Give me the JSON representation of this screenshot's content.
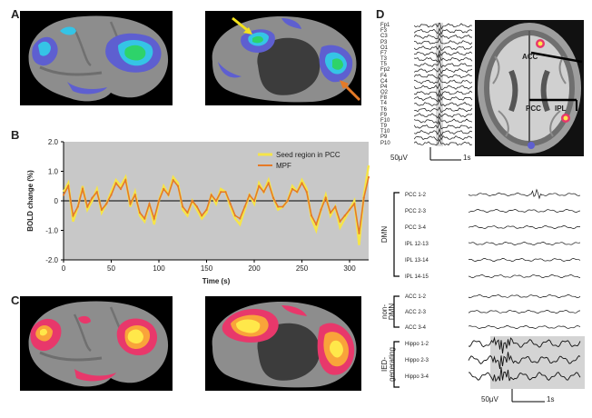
{
  "panels": {
    "a": {
      "label": "A"
    },
    "b": {
      "label": "B"
    },
    "c": {
      "label": "C"
    },
    "d": {
      "label": "D"
    }
  },
  "colors": {
    "dmn_blue": "#5e5fd0",
    "cyan": "#35c4e6",
    "green": "#2ed36a",
    "seed_yellow": "#f6e548",
    "mpf_orange": "#e57a27",
    "hot_red": "#e8386b",
    "hot_yellow": "#ffe84a",
    "arrow_yellow": "#f4e31c",
    "arrow_orange": "#e57a27"
  },
  "chart_data": {
    "type": "line",
    "title": "",
    "xlabel": "Time (s)",
    "ylabel": "BOLD change (%)",
    "xlim": [
      0,
      320
    ],
    "ylim": [
      -2.0,
      2.0
    ],
    "xticks": [
      0,
      50,
      100,
      150,
      200,
      250,
      300
    ],
    "yticks": [
      "2.0",
      "1.0",
      "0",
      "-1.0",
      "-2.0"
    ],
    "yticks_num": [
      2.0,
      1.0,
      0,
      -1.0,
      -2.0
    ],
    "legend": [
      "Seed region in PCC",
      "MPF"
    ],
    "legend_position": "top-right",
    "series": [
      {
        "name": "Seed region in PCC",
        "x": [
          0,
          5,
          10,
          15,
          20,
          25,
          30,
          35,
          40,
          45,
          50,
          55,
          60,
          65,
          70,
          75,
          80,
          85,
          90,
          95,
          100,
          105,
          110,
          115,
          120,
          125,
          130,
          135,
          140,
          145,
          150,
          155,
          160,
          165,
          170,
          175,
          180,
          185,
          190,
          195,
          200,
          205,
          210,
          215,
          220,
          225,
          230,
          235,
          240,
          245,
          250,
          255,
          260,
          265,
          270,
          275,
          280,
          285,
          290,
          295,
          300,
          305,
          310,
          315,
          320
        ],
        "values": [
          0.3,
          0.6,
          -0.7,
          -0.2,
          0.5,
          -0.3,
          0.0,
          0.4,
          -0.4,
          -0.1,
          0.3,
          0.7,
          0.5,
          0.8,
          -0.2,
          0.3,
          -0.5,
          -0.7,
          -0.1,
          -0.8,
          0.0,
          0.5,
          0.2,
          0.8,
          0.6,
          -0.3,
          -0.5,
          0.0,
          -0.3,
          -0.6,
          -0.4,
          0.2,
          -0.1,
          0.4,
          0.3,
          -0.2,
          -0.6,
          -0.8,
          -0.3,
          0.2,
          -0.1,
          0.6,
          0.3,
          0.7,
          0.1,
          -0.3,
          -0.2,
          0.0,
          0.5,
          0.3,
          0.7,
          0.4,
          -0.6,
          -1.0,
          -0.3,
          0.2,
          -0.5,
          -0.2,
          -0.9,
          -0.6,
          -0.3,
          0.0,
          -1.5,
          0.2,
          1.2
        ]
      },
      {
        "name": "MPF",
        "x": [
          0,
          5,
          10,
          15,
          20,
          25,
          30,
          35,
          40,
          45,
          50,
          55,
          60,
          65,
          70,
          75,
          80,
          85,
          90,
          95,
          100,
          105,
          110,
          115,
          120,
          125,
          130,
          135,
          140,
          145,
          150,
          155,
          160,
          165,
          170,
          175,
          180,
          185,
          190,
          195,
          200,
          205,
          210,
          215,
          220,
          225,
          230,
          235,
          240,
          245,
          250,
          255,
          260,
          265,
          270,
          275,
          280,
          285,
          290,
          295,
          300,
          305,
          310,
          315,
          320
        ],
        "values": [
          0.2,
          0.5,
          -0.5,
          -0.2,
          0.4,
          -0.2,
          0.1,
          0.3,
          -0.3,
          -0.1,
          0.2,
          0.6,
          0.4,
          0.7,
          -0.1,
          0.2,
          -0.4,
          -0.6,
          -0.1,
          -0.6,
          0.0,
          0.4,
          0.2,
          0.7,
          0.5,
          -0.2,
          -0.4,
          0.0,
          -0.2,
          -0.5,
          -0.3,
          0.2,
          0.0,
          0.3,
          0.3,
          -0.1,
          -0.5,
          -0.6,
          -0.2,
          0.2,
          0.0,
          0.5,
          0.3,
          0.6,
          0.1,
          -0.2,
          -0.2,
          0.0,
          0.4,
          0.3,
          0.6,
          0.3,
          -0.5,
          -0.8,
          -0.3,
          0.1,
          -0.4,
          -0.2,
          -0.7,
          -0.5,
          -0.3,
          -0.1,
          -1.1,
          0.1,
          0.8
        ]
      }
    ]
  },
  "eeg": {
    "scalp_channels": [
      "Fp1",
      "F3",
      "C3",
      "P3",
      "O1",
      "F7",
      "T3",
      "T5",
      "Fp2",
      "F4",
      "C4",
      "P4",
      "O2",
      "F8",
      "T4",
      "T6",
      "F9",
      "F10",
      "T9",
      "T10",
      "P9",
      "P10"
    ],
    "scale_voltage": "50μV",
    "scale_time": "1s",
    "regions": [
      "ACC",
      "PCC",
      "IPL"
    ]
  },
  "ieeg": {
    "groups": [
      {
        "label": "DMN",
        "channels": [
          "PCC 1-2",
          "PCC 2-3",
          "PCC 3-4",
          "IPL 12-13",
          "IPL 13-14",
          "IPL 14-15"
        ]
      },
      {
        "label": "non-\nDMN",
        "label_lines": [
          "non-",
          "DMN"
        ],
        "channels": [
          "ACC 1-2",
          "ACC 2-3",
          "ACC 3-4"
        ]
      },
      {
        "label": "IED-generating",
        "label_lines": [
          "IED-",
          "generating"
        ],
        "channels": [
          "Hippo 1-2",
          "Hippo 2-3",
          "Hippo 3-4"
        ]
      }
    ],
    "scale_voltage": "50μV",
    "scale_time": "1s"
  }
}
